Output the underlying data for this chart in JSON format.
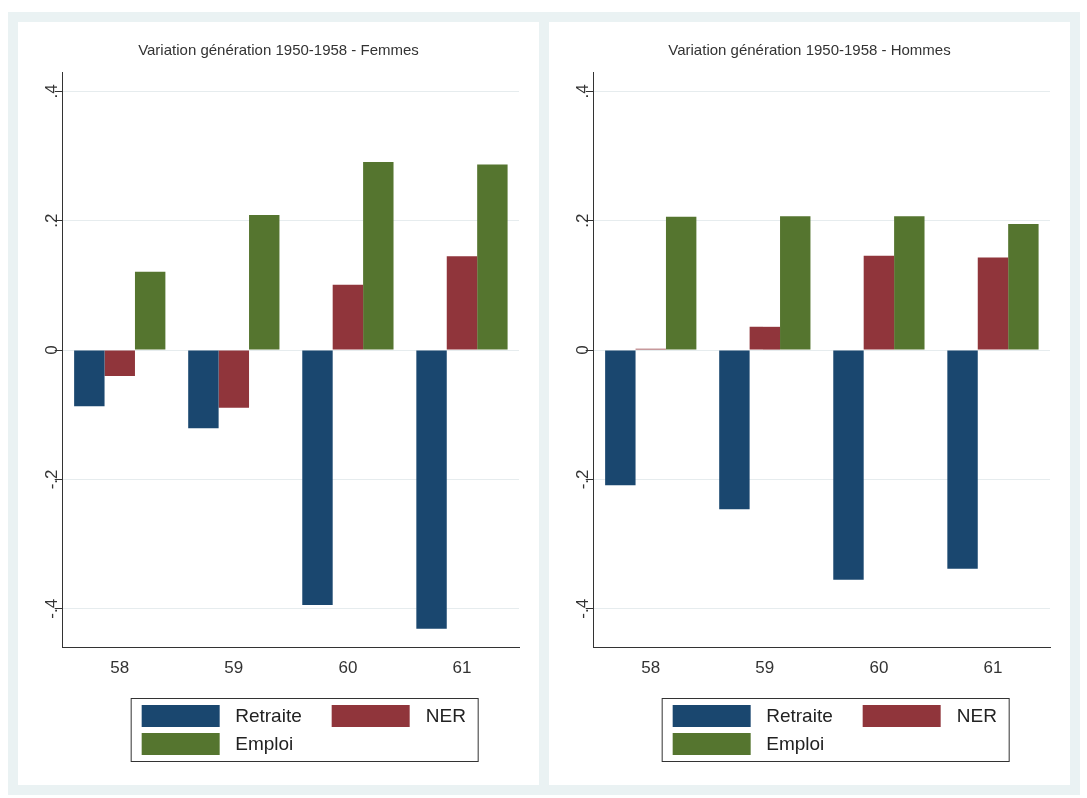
{
  "chart_data": [
    {
      "type": "bar",
      "title": "Variation génération 1950-1958 - Femmes",
      "categories": [
        "58",
        "59",
        "60",
        "61"
      ],
      "series": [
        {
          "name": "Retraite",
          "color": "#1a476f",
          "values": [
            -0.087,
            -0.121,
            -0.394,
            -0.431
          ]
        },
        {
          "name": "NER",
          "color": "#90353b",
          "values": [
            -0.04,
            -0.089,
            0.101,
            0.145
          ]
        },
        {
          "name": "Emploi",
          "color": "#55752f",
          "values": [
            0.121,
            0.209,
            0.291,
            0.287
          ]
        }
      ],
      "ylim": [
        -0.46,
        0.43
      ],
      "yticks": [
        {
          "value": -0.4,
          "label": "-.4"
        },
        {
          "value": -0.2,
          "label": "-.2"
        },
        0,
        {
          "value": 0.2,
          "label": ".2"
        },
        {
          "value": 0.4,
          "label": ".4"
        }
      ],
      "grid": "y",
      "legend": "bottom"
    },
    {
      "type": "bar",
      "title": "Variation génération 1950-1958 - Hommes",
      "categories": [
        "58",
        "59",
        "60",
        "61"
      ],
      "series": [
        {
          "name": "Retraite",
          "color": "#1a476f",
          "values": [
            -0.209,
            -0.246,
            -0.355,
            -0.338
          ]
        },
        {
          "name": "NER",
          "color": "#90353b",
          "values": [
            0.002,
            0.036,
            0.146,
            0.143
          ]
        },
        {
          "name": "Emploi",
          "color": "#55752f",
          "values": [
            0.206,
            0.207,
            0.207,
            0.195
          ]
        }
      ],
      "ylim": [
        -0.46,
        0.43
      ],
      "yticks": [
        {
          "value": -0.4,
          "label": "-.4"
        },
        {
          "value": -0.2,
          "label": "-.2"
        },
        0,
        {
          "value": 0.2,
          "label": ".2"
        },
        {
          "value": 0.4,
          "label": ".4"
        }
      ],
      "grid": "y",
      "legend": "bottom"
    }
  ]
}
